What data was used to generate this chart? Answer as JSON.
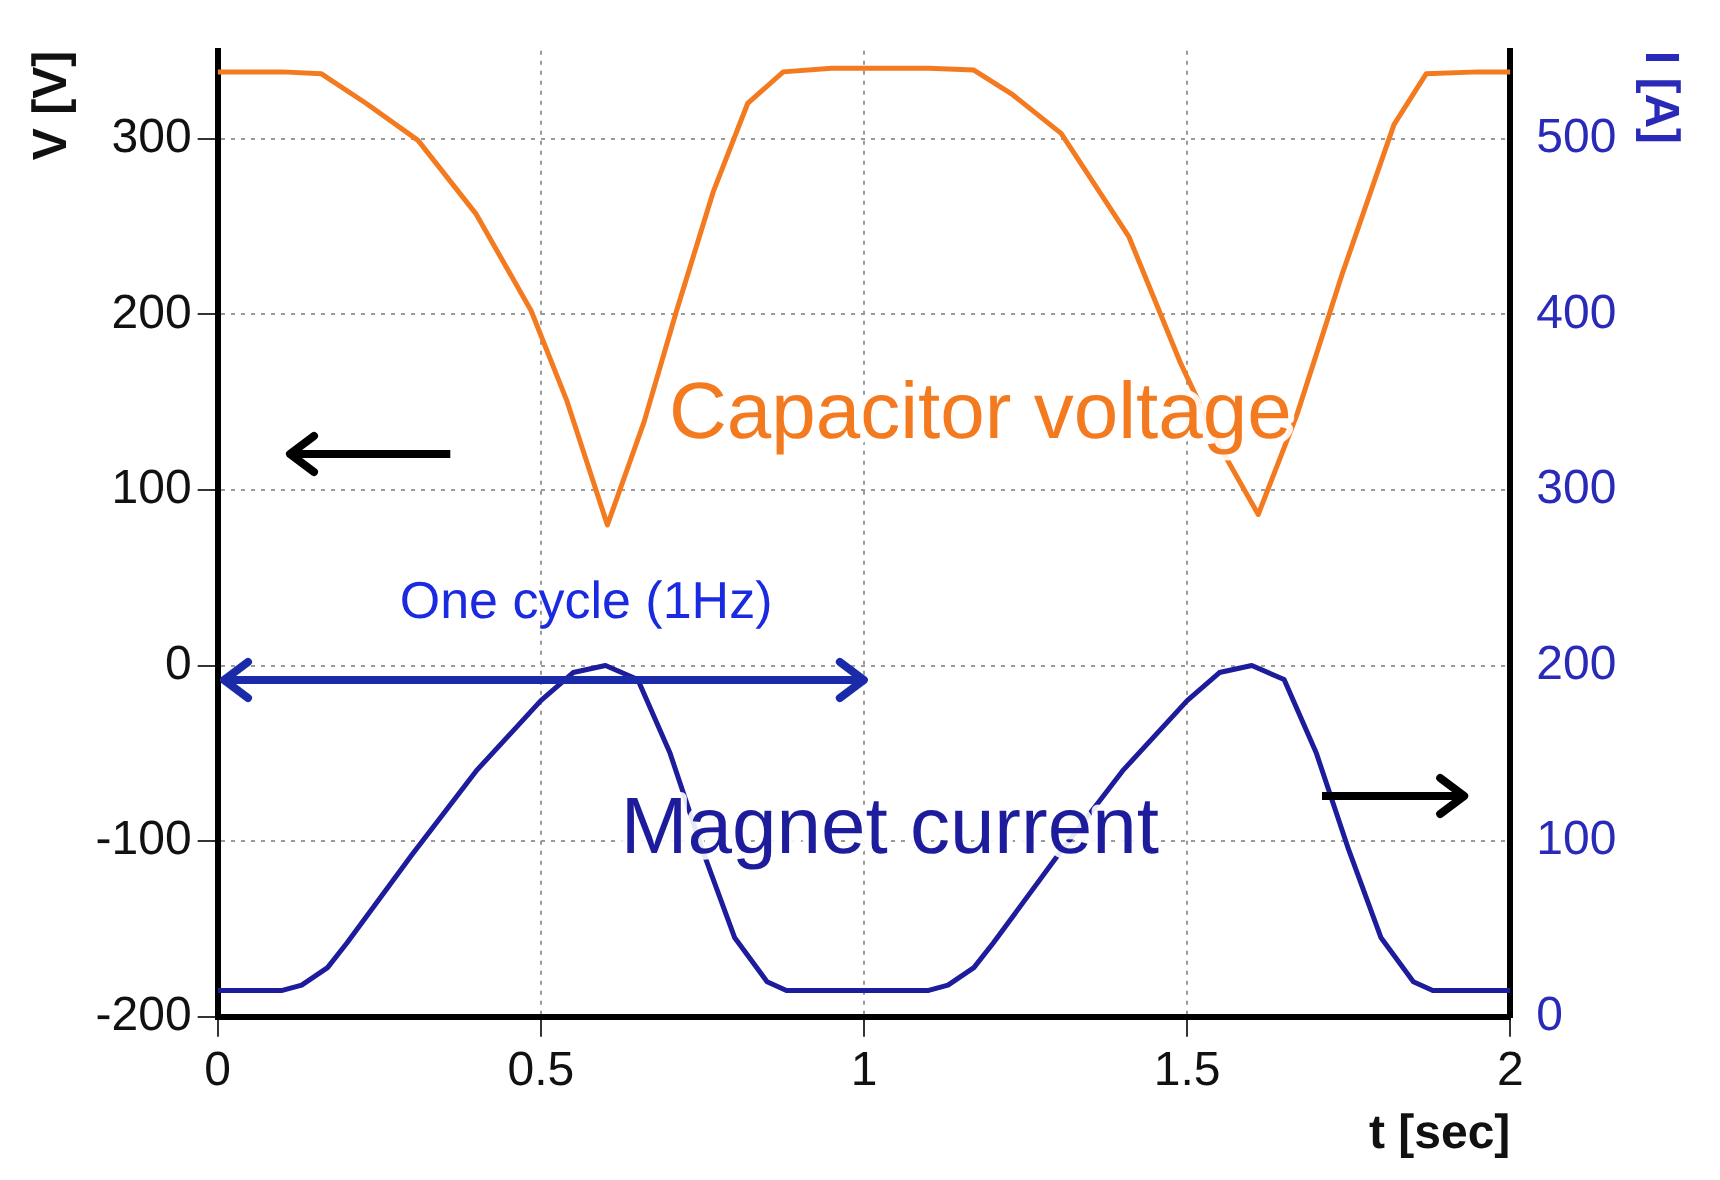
{
  "chart_data": {
    "type": "line",
    "xlabel": "t [sec]",
    "ylabel": "V [V]",
    "y2label": "I [A]",
    "annotations": [
      "One cycle (1Hz)"
    ],
    "series": [
      {
        "name": "Capacitor voltage",
        "color": "#f47a1f",
        "x": [
          0,
          0.1,
          0.16,
          0.23,
          0.31,
          0.4,
          0.485,
          0.54,
          0.603,
          0.66,
          0.71,
          0.767,
          0.82,
          0.875,
          0.95,
          1.1,
          1.17,
          1.23,
          1.305,
          1.41,
          1.49,
          1.55,
          1.61,
          1.67,
          1.74,
          1.82,
          1.87,
          1.95,
          2
        ],
        "values": [
          338,
          338,
          337,
          320,
          299,
          257,
          202,
          151,
          80,
          139,
          202,
          270,
          320,
          338,
          340,
          340,
          339,
          325,
          303,
          244,
          172,
          125,
          86,
          143,
          223,
          308,
          337,
          338,
          338
        ]
      },
      {
        "name": "Magnet current",
        "color": "#1c1c9c",
        "axis": "y2",
        "x": [
          0,
          0.1,
          0.13,
          0.17,
          0.2,
          0.3,
          0.4,
          0.5,
          0.55,
          0.6,
          0.65,
          0.7,
          0.75,
          0.8,
          0.85,
          0.88,
          1.1,
          1.13,
          1.17,
          1.2,
          1.3,
          1.4,
          1.5,
          1.55,
          1.6,
          1.65,
          1.7,
          1.75,
          1.8,
          1.85,
          1.88,
          2
        ],
        "values": [
          15,
          15,
          18,
          28,
          42,
          92,
          140,
          180,
          196,
          200,
          192,
          150,
          95,
          45,
          20,
          15,
          15,
          18,
          28,
          42,
          92,
          140,
          180,
          196,
          200,
          192,
          150,
          95,
          45,
          20,
          15,
          15
        ]
      }
    ],
    "xlim": [
      0,
      2
    ],
    "xticks": [
      0,
      0.5,
      1,
      1.5,
      2
    ],
    "ylim": [
      -200,
      350
    ],
    "yticks": [
      -200,
      -100,
      0,
      100,
      200,
      300
    ],
    "y2lim": [
      0,
      550
    ],
    "y2ticks": [
      0,
      100,
      200,
      300,
      400,
      500
    ],
    "grid": true,
    "legend": false,
    "marker": "none",
    "line_style": "solid"
  }
}
